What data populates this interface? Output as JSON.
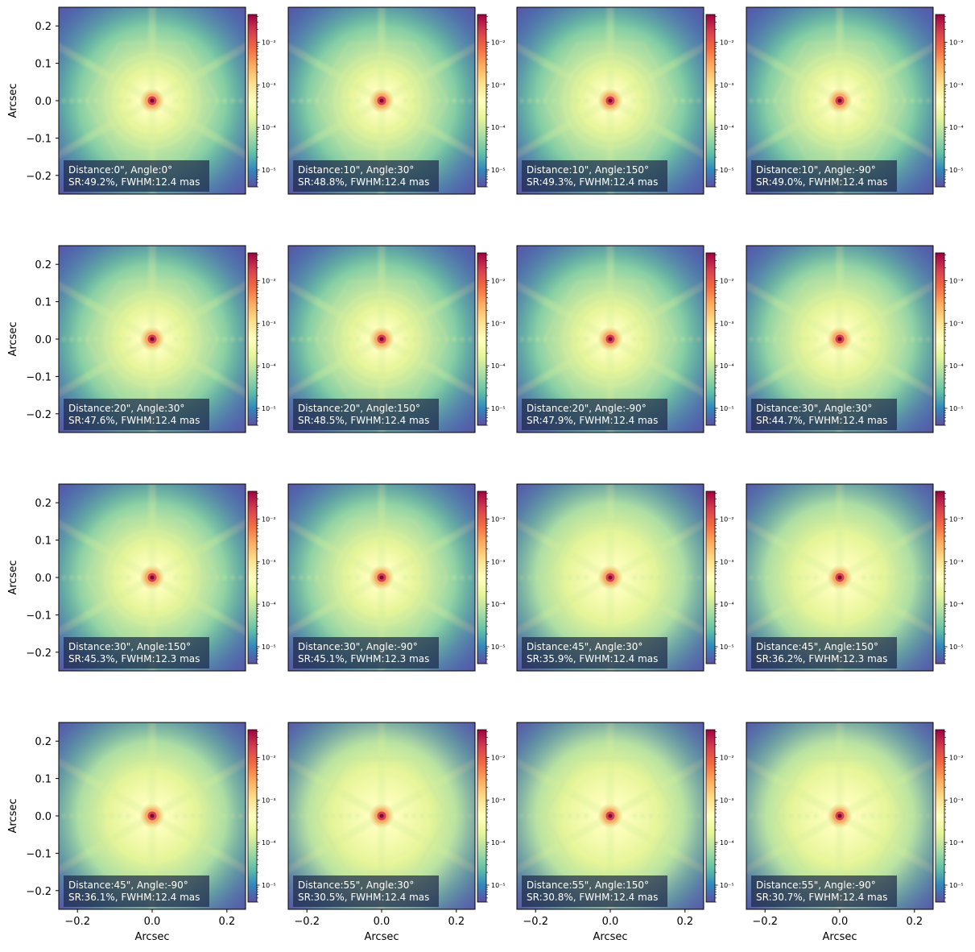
{
  "chart_data": {
    "type": "heatmap",
    "layout": {
      "rows": 4,
      "cols": 4
    },
    "xlabel": "Arcsec",
    "ylabel": "Arcsec",
    "xlim": [
      -0.25,
      0.25
    ],
    "ylim": [
      -0.25,
      0.25
    ],
    "x_ticks": [
      "−0.2",
      "0.0",
      "0.2"
    ],
    "y_ticks": [
      "0.2",
      "0.1",
      "0.0",
      "−0.1",
      "−0.2"
    ],
    "x_tick_values": [
      -0.2,
      0.0,
      0.2
    ],
    "y_tick_values": [
      0.2,
      0.1,
      0.0,
      -0.1,
      -0.2
    ],
    "colormap": "Spectral_r",
    "color_scale": "log",
    "colorbar": {
      "range": [
        4e-06,
        0.045
      ],
      "ticks": [
        {
          "value": 0.01,
          "label": "10⁻²"
        },
        {
          "value": 0.001,
          "label": "10⁻³"
        },
        {
          "value": 0.0001,
          "label": "10⁻⁴"
        },
        {
          "value": 1e-05,
          "label": "10⁻⁵"
        }
      ]
    },
    "panels": [
      {
        "line1": "Distance:0\", Angle:0°",
        "line2": "SR:49.2%, FWHM:12.4 mas",
        "distance": 0,
        "angle": 0,
        "sr": 49.2,
        "fwhm": 12.4
      },
      {
        "line1": "Distance:10\", Angle:30°",
        "line2": "SR:48.8%, FWHM:12.4 mas",
        "distance": 10,
        "angle": 30,
        "sr": 48.8,
        "fwhm": 12.4
      },
      {
        "line1": "Distance:10\", Angle:150°",
        "line2": "SR:49.3%, FWHM:12.4 mas",
        "distance": 10,
        "angle": 150,
        "sr": 49.3,
        "fwhm": 12.4
      },
      {
        "line1": "Distance:10\", Angle:-90°",
        "line2": "SR:49.0%, FWHM:12.4 mas",
        "distance": 10,
        "angle": -90,
        "sr": 49.0,
        "fwhm": 12.4
      },
      {
        "line1": "Distance:20\", Angle:30°",
        "line2": "SR:47.6%, FWHM:12.4 mas",
        "distance": 20,
        "angle": 30,
        "sr": 47.6,
        "fwhm": 12.4
      },
      {
        "line1": "Distance:20\", Angle:150°",
        "line2": "SR:48.5%, FWHM:12.4 mas",
        "distance": 20,
        "angle": 150,
        "sr": 48.5,
        "fwhm": 12.4
      },
      {
        "line1": "Distance:20\", Angle:-90°",
        "line2": "SR:47.9%, FWHM:12.4 mas",
        "distance": 20,
        "angle": -90,
        "sr": 47.9,
        "fwhm": 12.4
      },
      {
        "line1": "Distance:30\", Angle:30°",
        "line2": "SR:44.7%, FWHM:12.4 mas",
        "distance": 30,
        "angle": 30,
        "sr": 44.7,
        "fwhm": 12.4
      },
      {
        "line1": "Distance:30\", Angle:150°",
        "line2": "SR:45.3%, FWHM:12.3 mas",
        "distance": 30,
        "angle": 150,
        "sr": 45.3,
        "fwhm": 12.3
      },
      {
        "line1": "Distance:30\", Angle:-90°",
        "line2": "SR:45.1%, FWHM:12.3 mas",
        "distance": 30,
        "angle": -90,
        "sr": 45.1,
        "fwhm": 12.3
      },
      {
        "line1": "Distance:45\", Angle:30°",
        "line2": "SR:35.9%, FWHM:12.4 mas",
        "distance": 45,
        "angle": 30,
        "sr": 35.9,
        "fwhm": 12.4
      },
      {
        "line1": "Distance:45\", Angle:150°",
        "line2": "SR:36.2%, FWHM:12.3 mas",
        "distance": 45,
        "angle": 150,
        "sr": 36.2,
        "fwhm": 12.3
      },
      {
        "line1": "Distance:45\", Angle:-90°",
        "line2": "SR:36.1%, FWHM:12.4 mas",
        "distance": 45,
        "angle": -90,
        "sr": 36.1,
        "fwhm": 12.4
      },
      {
        "line1": "Distance:55\", Angle:30°",
        "line2": "SR:30.5%, FWHM:12.4 mas",
        "distance": 55,
        "angle": 30,
        "sr": 30.5,
        "fwhm": 12.4
      },
      {
        "line1": "Distance:55\", Angle:150°",
        "line2": "SR:30.8%, FWHM:12.4 mas",
        "distance": 55,
        "angle": 150,
        "sr": 30.8,
        "fwhm": 12.4
      },
      {
        "line1": "Distance:55\", Angle:-90°",
        "line2": "SR:30.7%, FWHM:12.4 mas",
        "distance": 55,
        "angle": -90,
        "sr": 30.7,
        "fwhm": 12.4
      }
    ]
  }
}
